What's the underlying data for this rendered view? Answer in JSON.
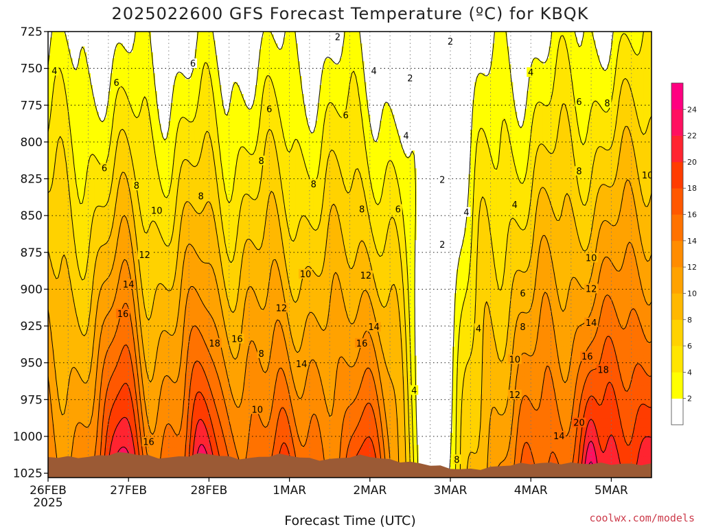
{
  "chart_data": {
    "type": "heatmap",
    "title": "2025022600 GFS Forecast Temperature (ºC) for KBQK",
    "xlabel": "Forecast Time (UTC)",
    "ylabel": "",
    "y_ticks": [
      725,
      750,
      775,
      800,
      825,
      850,
      875,
      900,
      925,
      950,
      975,
      1000,
      1025
    ],
    "y_range": [
      725,
      1028
    ],
    "y_unit": "hPa",
    "x_ticks": [
      {
        "day": 0,
        "label": "26FEB",
        "sublabel": "2025"
      },
      {
        "day": 1,
        "label": "27FEB"
      },
      {
        "day": 2,
        "label": "28FEB"
      },
      {
        "day": 3,
        "label": "1MAR"
      },
      {
        "day": 4,
        "label": "2MAR"
      },
      {
        "day": 5,
        "label": "3MAR"
      },
      {
        "day": 6,
        "label": "4MAR"
      },
      {
        "day": 7,
        "label": "5MAR"
      }
    ],
    "x_range_days": [
      0,
      7.5
    ],
    "grid": true,
    "colorbar": {
      "placement": "right",
      "levels": [
        0,
        2,
        4,
        6,
        8,
        10,
        12,
        14,
        16,
        18,
        20,
        22,
        24,
        26
      ],
      "tick_labels": [
        "2",
        "4",
        "6",
        "8",
        "10",
        "12",
        "14",
        "16",
        "18",
        "20",
        "22",
        "24"
      ],
      "colors": [
        "#ffffff",
        "#ffff00",
        "#ffe500",
        "#ffd200",
        "#ffb800",
        "#ffa200",
        "#ff8c00",
        "#ff7200",
        "#ff5800",
        "#ff3c00",
        "#ff2430",
        "#ff1060",
        "#ff0080"
      ]
    },
    "ground_color": "#9b5a35",
    "contour_labels": [
      {
        "day": 0.08,
        "p": 752,
        "t": "4"
      },
      {
        "day": 0.85,
        "p": 760,
        "t": "6"
      },
      {
        "day": 1.8,
        "p": 747,
        "t": "6"
      },
      {
        "day": 0.7,
        "p": 818,
        "t": "6"
      },
      {
        "day": 3.6,
        "p": 729,
        "t": "2"
      },
      {
        "day": 4.05,
        "p": 752,
        "t": "4"
      },
      {
        "day": 4.5,
        "p": 757,
        "t": "2"
      },
      {
        "day": 5.0,
        "p": 732,
        "t": "2"
      },
      {
        "day": 2.75,
        "p": 778,
        "t": "6"
      },
      {
        "day": 3.7,
        "p": 782,
        "t": "6"
      },
      {
        "day": 4.45,
        "p": 796,
        "t": "4"
      },
      {
        "day": 6.0,
        "p": 753,
        "t": "4"
      },
      {
        "day": 6.6,
        "p": 773,
        "t": "6"
      },
      {
        "day": 6.95,
        "p": 774,
        "t": "8"
      },
      {
        "day": 1.1,
        "p": 830,
        "t": "8"
      },
      {
        "day": 1.9,
        "p": 837,
        "t": "8"
      },
      {
        "day": 2.65,
        "p": 813,
        "t": "8"
      },
      {
        "day": 3.3,
        "p": 829,
        "t": "8"
      },
      {
        "day": 3.9,
        "p": 846,
        "t": "8"
      },
      {
        "day": 4.35,
        "p": 846,
        "t": "6"
      },
      {
        "day": 4.9,
        "p": 826,
        "t": "2"
      },
      {
        "day": 6.6,
        "p": 820,
        "t": "8"
      },
      {
        "day": 7.45,
        "p": 823,
        "t": "10"
      },
      {
        "day": 1.35,
        "p": 847,
        "t": "10"
      },
      {
        "day": 5.2,
        "p": 848,
        "t": "4"
      },
      {
        "day": 5.8,
        "p": 843,
        "t": "4"
      },
      {
        "day": 4.9,
        "p": 870,
        "t": "2"
      },
      {
        "day": 1.2,
        "p": 877,
        "t": "12"
      },
      {
        "day": 3.2,
        "p": 890,
        "t": "10"
      },
      {
        "day": 3.95,
        "p": 891,
        "t": "12"
      },
      {
        "day": 6.75,
        "p": 879,
        "t": "10"
      },
      {
        "day": 1.0,
        "p": 897,
        "t": "14"
      },
      {
        "day": 5.9,
        "p": 903,
        "t": "6"
      },
      {
        "day": 6.75,
        "p": 900,
        "t": "12"
      },
      {
        "day": 0.93,
        "p": 917,
        "t": "16"
      },
      {
        "day": 2.9,
        "p": 913,
        "t": "12"
      },
      {
        "day": 4.05,
        "p": 926,
        "t": "14"
      },
      {
        "day": 3.9,
        "p": 937,
        "t": "16"
      },
      {
        "day": 5.35,
        "p": 927,
        "t": "4"
      },
      {
        "day": 5.9,
        "p": 926,
        "t": "8"
      },
      {
        "day": 6.75,
        "p": 923,
        "t": "14"
      },
      {
        "day": 2.07,
        "p": 937,
        "t": "18"
      },
      {
        "day": 2.35,
        "p": 934,
        "t": "16"
      },
      {
        "day": 2.65,
        "p": 944,
        "t": "8"
      },
      {
        "day": 3.15,
        "p": 951,
        "t": "14"
      },
      {
        "day": 5.8,
        "p": 948,
        "t": "10"
      },
      {
        "day": 6.7,
        "p": 946,
        "t": "16"
      },
      {
        "day": 6.9,
        "p": 955,
        "t": "18"
      },
      {
        "day": 4.55,
        "p": 969,
        "t": "4"
      },
      {
        "day": 5.8,
        "p": 972,
        "t": "12"
      },
      {
        "day": 2.6,
        "p": 982,
        "t": "10"
      },
      {
        "day": 6.35,
        "p": 1000,
        "t": "14"
      },
      {
        "day": 6.6,
        "p": 991,
        "t": "20"
      },
      {
        "day": 1.25,
        "p": 1004,
        "t": "16"
      },
      {
        "day": 5.08,
        "p": 1016,
        "t": "8"
      }
    ]
  },
  "credit": "coolwx.com/models"
}
